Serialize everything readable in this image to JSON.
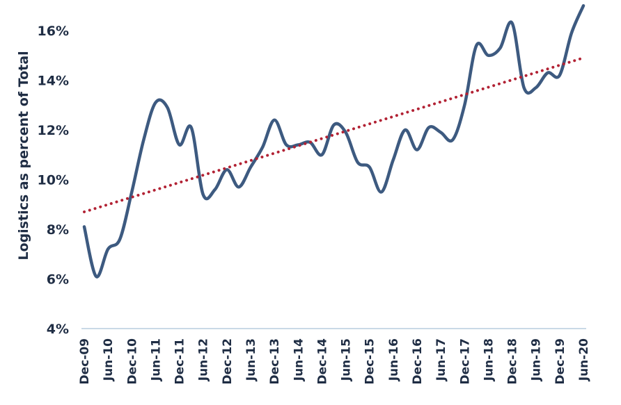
{
  "chart_data": {
    "type": "line",
    "ylabel": "Logistics as percent of Total",
    "xlabel": "",
    "title": "",
    "ylim": [
      4,
      16.7
    ],
    "y_ticks": [
      4,
      6,
      8,
      10,
      12,
      14,
      16
    ],
    "y_tick_labels": [
      "4%",
      "6%",
      "8%",
      "10%",
      "12%",
      "14%",
      "16%"
    ],
    "categories": [
      "Dec-09",
      "Jun-10",
      "Dec-10",
      "Jun-11",
      "Dec-11",
      "Jun-12",
      "Dec-12",
      "Jun-13",
      "Dec-13",
      "Jun-14",
      "Dec-14",
      "Jun-15",
      "Dec-15",
      "Jun-16",
      "Dec-16",
      "Jun-17",
      "Dec-17",
      "Jun-18",
      "Dec-18",
      "Jun-19",
      "Dec-19",
      "Jun-20"
    ],
    "grid": false,
    "series": [
      {
        "role": "actual",
        "color": "#3d5a80",
        "style": "solid",
        "x": [
          0,
          0.5,
          1,
          1.5,
          2,
          2.5,
          3,
          3.5,
          4,
          4.5,
          5,
          5.5,
          6,
          6.5,
          7,
          7.5,
          8,
          8.5,
          9,
          9.5,
          10,
          10.5,
          11,
          11.5,
          12,
          12.5,
          13,
          13.5,
          14,
          14.5,
          15,
          15.5,
          16,
          16.5,
          17,
          17.5,
          18,
          18.5,
          19,
          19.5,
          20,
          20.5,
          21
        ],
        "values": [
          8.1,
          6.1,
          7.2,
          7.6,
          9.5,
          11.6,
          13.1,
          12.9,
          11.4,
          12.1,
          9.4,
          9.6,
          10.4,
          9.7,
          10.5,
          11.3,
          12.4,
          11.4,
          11.4,
          11.5,
          11.0,
          12.2,
          11.9,
          10.7,
          10.5,
          9.5,
          10.8,
          12.0,
          11.2,
          12.1,
          11.9,
          11.6,
          13.0,
          15.4,
          15.0,
          15.3,
          16.3,
          13.7,
          13.7,
          14.3,
          14.2,
          15.9,
          17.0
        ]
      },
      {
        "role": "linear trend",
        "color": "#b22234",
        "style": "dotted",
        "x": [
          0,
          21
        ],
        "values": [
          8.7,
          14.9
        ]
      }
    ]
  }
}
